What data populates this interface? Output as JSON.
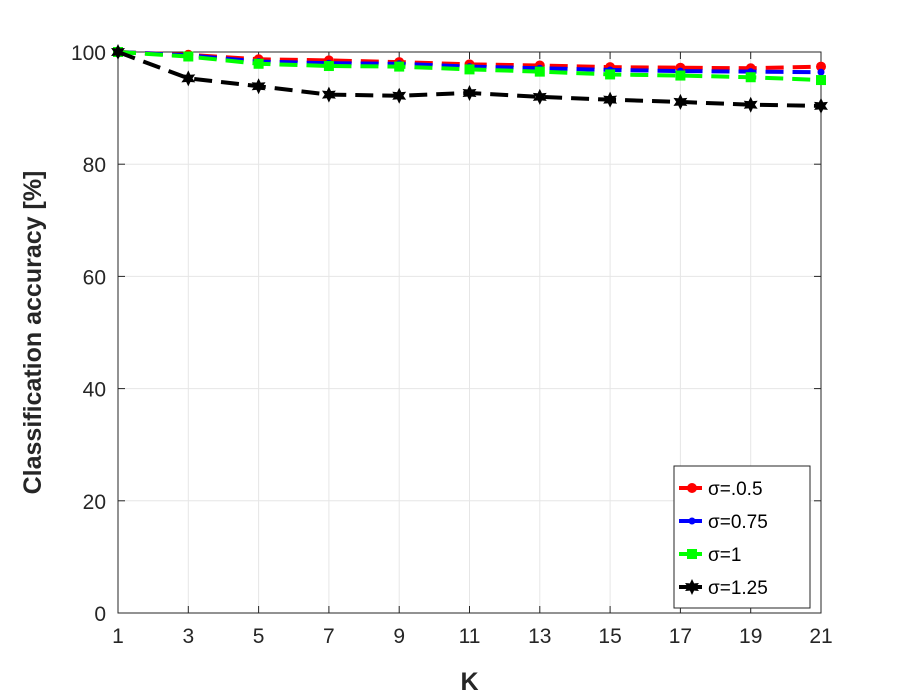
{
  "chart_data": {
    "type": "line",
    "title": "",
    "xlabel": "K",
    "ylabel": "Classification accuracy [%]",
    "x": [
      1,
      3,
      5,
      7,
      9,
      11,
      13,
      15,
      17,
      19,
      21
    ],
    "xlim": [
      1,
      21
    ],
    "ylim": [
      0,
      100
    ],
    "xticks": [
      1,
      3,
      5,
      7,
      9,
      11,
      13,
      15,
      17,
      19,
      21
    ],
    "yticks": [
      0,
      20,
      40,
      60,
      80,
      100
    ],
    "grid": true,
    "legend_position": "bottom-right",
    "series": [
      {
        "name": "σ=.0.5",
        "color": "#ff0000",
        "marker": "circle",
        "line": "dashed",
        "values": [
          100,
          99.5,
          98.7,
          98.5,
          98.2,
          97.8,
          97.6,
          97.3,
          97.2,
          97.1,
          97.4
        ]
      },
      {
        "name": "σ=0.75",
        "color": "#0000ff",
        "marker": "point",
        "line": "dashed",
        "values": [
          100,
          99.4,
          98.3,
          98.0,
          97.9,
          97.4,
          97.1,
          96.8,
          96.6,
          96.5,
          96.4
        ]
      },
      {
        "name": "σ=1",
        "color": "#00ff00",
        "marker": "square",
        "line": "dashed",
        "values": [
          100,
          99.2,
          97.9,
          97.5,
          97.4,
          96.9,
          96.5,
          96.0,
          95.8,
          95.5,
          95.0
        ]
      },
      {
        "name": "σ=1.25",
        "color": "#000000",
        "marker": "hexagram",
        "line": "dashed",
        "values": [
          100,
          95.3,
          93.9,
          92.4,
          92.2,
          92.7,
          92.0,
          91.5,
          91.1,
          90.6,
          90.4
        ]
      }
    ]
  }
}
